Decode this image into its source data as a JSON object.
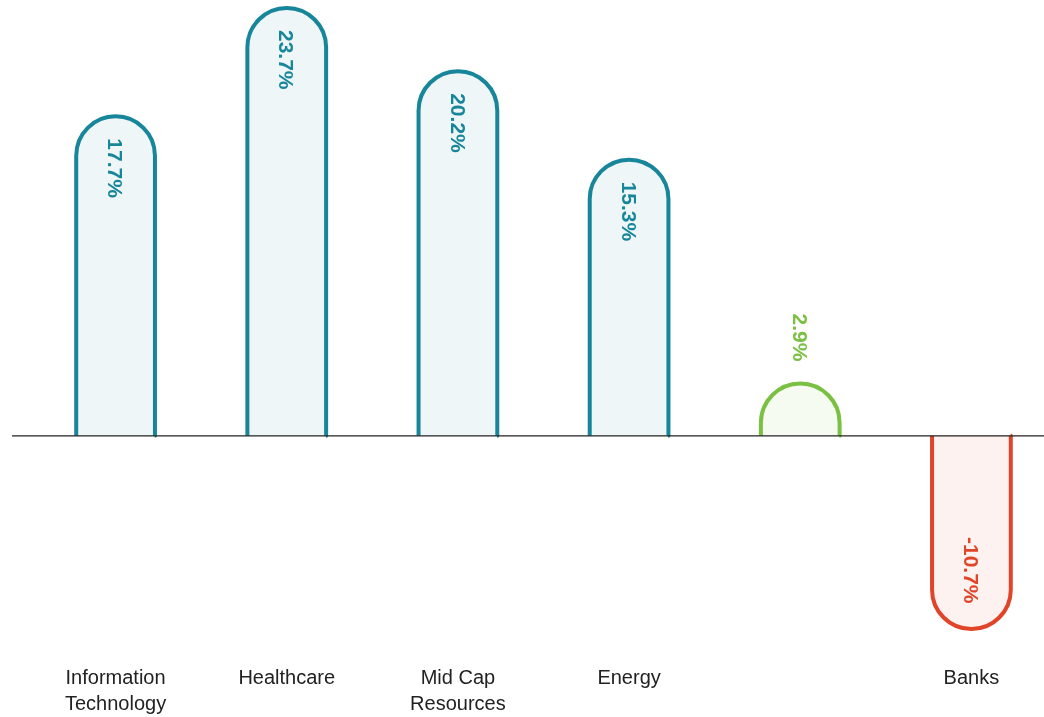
{
  "chart_data": {
    "type": "bar",
    "categories": [
      "Information Technology",
      "Healthcare",
      "Mid Cap Resources",
      "Energy",
      null,
      "Banks"
    ],
    "values": [
      17.7,
      23.7,
      20.2,
      15.3,
      2.9,
      -10.7
    ],
    "colors": [
      "#17869a",
      "#17869a",
      "#17869a",
      "#17869a",
      "#7ac143",
      "#e0452a"
    ],
    "ref_lines": [
      {
        "axis": "y",
        "value": 0,
        "color": "#222222"
      }
    ],
    "value_labels": [
      "17.7%",
      "23.7%",
      "20.2%",
      "15.3%",
      "2.9%",
      "-10.7%"
    ]
  }
}
